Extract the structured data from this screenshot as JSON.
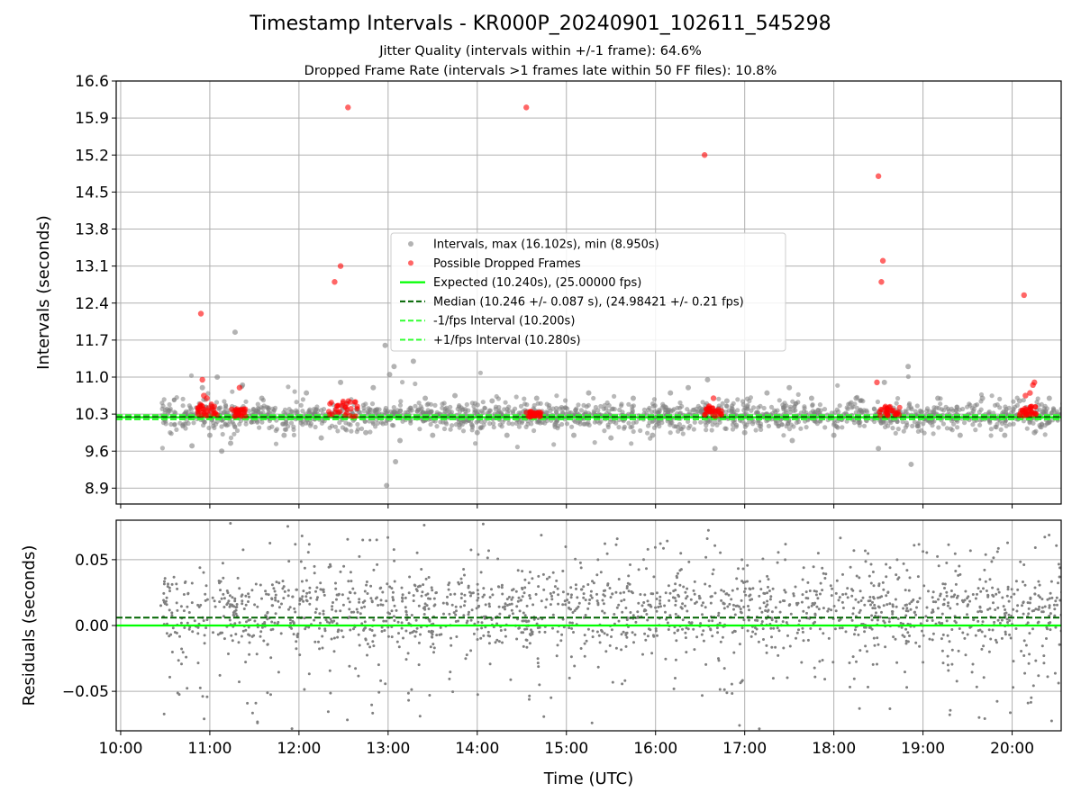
{
  "figure": {
    "title": "Timestamp Intervals - KR000P_20240901_102611_545298",
    "subtitle_1": "Jitter Quality (intervals within +/-1 frame): 64.6%",
    "subtitle_2": "Dropped Frame Rate (intervals >1 frames late within 50 FF files): 10.8%"
  },
  "colors": {
    "intervals": "#808080",
    "dropped": "#ff0000",
    "expected": "#00ff00",
    "median": "#006400",
    "fps_interval": "#32ff32",
    "residuals": "#808080",
    "grid": "#b0b0b0"
  },
  "chart_data": [
    {
      "type": "scatter",
      "ylabel": "Intervals (seconds)",
      "ylim": [
        8.6,
        16.6
      ],
      "xlim": [
        "09:57",
        "20:33"
      ],
      "y_ticks": [
        "8.9",
        "9.6",
        "10.3",
        "11.0",
        "11.7",
        "12.4",
        "13.1",
        "13.8",
        "14.5",
        "15.2",
        "15.9",
        "16.6"
      ],
      "y_tick_values": [
        8.9,
        9.6,
        10.3,
        11.0,
        11.7,
        12.4,
        13.1,
        13.8,
        14.5,
        15.2,
        15.9,
        16.6
      ],
      "grid": true,
      "legend_position": "center",
      "legend": [
        {
          "label": "Intervals, max (16.102s), min (8.950s)",
          "style": "dot-gray"
        },
        {
          "label": "Possible Dropped Frames",
          "style": "dot-red"
        },
        {
          "label": "Expected (10.240s), (25.00000 fps)",
          "style": "line-solid-green"
        },
        {
          "label": "Median (10.246 +/- 0.087 s), (24.98421 +/- 0.21 fps)",
          "style": "line-dashed-darkgreen"
        },
        {
          "label": "-1/fps Interval (10.200s)",
          "style": "line-dashed-green"
        },
        {
          "label": "+1/fps Interval (10.280s)",
          "style": "line-dashed-green"
        }
      ],
      "reference_lines": {
        "expected": 10.24,
        "median": 10.246,
        "minus_fps": 10.2,
        "plus_fps": 10.28
      },
      "series": [
        {
          "name": "Intervals, max (16.102s), min (8.950s)",
          "note": "Dense band of roughly 2000 intervals between 10.45 and 20.6 h, mostly 10.0-10.6 s",
          "points": [
            [
              "10:48",
              9.7
            ],
            [
              "10:55",
              10.8
            ],
            [
              "11:00",
              9.9
            ],
            [
              "11:05",
              11.0
            ],
            [
              "11:08",
              9.6
            ],
            [
              "11:14",
              9.75
            ],
            [
              "11:17",
              11.85
            ],
            [
              "11:22",
              10.85
            ],
            [
              "11:35",
              10.6
            ],
            [
              "11:50",
              9.9
            ],
            [
              "12:05",
              10.7
            ],
            [
              "12:15",
              9.85
            ],
            [
              "12:28",
              10.9
            ],
            [
              "12:45",
              9.95
            ],
            [
              "12:50",
              10.8
            ],
            [
              "12:58",
              11.6
            ],
            [
              "12:59",
              8.95
            ],
            [
              "13:01",
              11.05
            ],
            [
              "13:04",
              11.2
            ],
            [
              "13:05",
              9.4
            ],
            [
              "13:08",
              9.8
            ],
            [
              "13:17",
              11.3
            ],
            [
              "13:25",
              10.6
            ],
            [
              "13:30",
              9.9
            ],
            [
              "13:45",
              10.65
            ],
            [
              "14:00",
              9.95
            ],
            [
              "14:10",
              10.55
            ],
            [
              "14:20",
              9.9
            ],
            [
              "14:40",
              10.6
            ],
            [
              "15:05",
              9.9
            ],
            [
              "15:15",
              10.7
            ],
            [
              "15:30",
              9.85
            ],
            [
              "15:45",
              10.6
            ],
            [
              "15:58",
              9.9
            ],
            [
              "16:10",
              10.7
            ],
            [
              "16:22",
              10.8
            ],
            [
              "16:35",
              10.95
            ],
            [
              "16:40",
              9.65
            ],
            [
              "16:48",
              10.55
            ],
            [
              "17:00",
              9.95
            ],
            [
              "17:15",
              10.7
            ],
            [
              "17:30",
              10.8
            ],
            [
              "17:32",
              9.8
            ],
            [
              "17:45",
              10.6
            ],
            [
              "18:00",
              9.9
            ],
            [
              "18:15",
              10.6
            ],
            [
              "18:30",
              9.65
            ],
            [
              "18:34",
              10.9
            ],
            [
              "18:50",
              11.2
            ],
            [
              "18:52",
              9.35
            ],
            [
              "19:10",
              10.6
            ],
            [
              "19:25",
              9.9
            ],
            [
              "19:40",
              10.6
            ],
            [
              "19:55",
              9.9
            ],
            [
              "20:05",
              10.55
            ],
            [
              "20:15",
              9.95
            ],
            [
              "20:25",
              10.6
            ]
          ]
        },
        {
          "name": "Possible Dropped Frames",
          "points": [
            [
              "10:54",
              12.2
            ],
            [
              "10:55",
              10.95
            ],
            [
              "10:56",
              10.65
            ],
            [
              "10:58",
              10.6
            ],
            [
              "11:20",
              10.8
            ],
            [
              "11:18",
              10.35
            ],
            [
              "12:24",
              12.8
            ],
            [
              "12:28",
              13.1
            ],
            [
              "12:33",
              16.1
            ],
            [
              "12:35",
              10.4
            ],
            [
              "14:33",
              16.1
            ],
            [
              "14:38",
              10.3
            ],
            [
              "16:33",
              15.2
            ],
            [
              "16:36",
              10.45
            ],
            [
              "16:39",
              10.6
            ],
            [
              "18:30",
              14.8
            ],
            [
              "18:32",
              12.8
            ],
            [
              "18:33",
              13.2
            ],
            [
              "18:29",
              10.9
            ],
            [
              "18:36",
              10.4
            ],
            [
              "20:08",
              12.55
            ],
            [
              "20:09",
              10.65
            ],
            [
              "20:12",
              10.7
            ],
            [
              "20:14",
              10.85
            ],
            [
              "20:15",
              10.9
            ]
          ],
          "clusters": [
            {
              "from": "10:50",
              "to": "11:05",
              "y_from": 10.25,
              "y_to": 10.5
            },
            {
              "from": "11:14",
              "to": "11:24",
              "y_from": 10.25,
              "y_to": 10.4
            },
            {
              "from": "12:20",
              "to": "12:40",
              "y_from": 10.25,
              "y_to": 10.55
            },
            {
              "from": "14:33",
              "to": "14:43",
              "y_from": 10.25,
              "y_to": 10.35
            },
            {
              "from": "16:33",
              "to": "16:45",
              "y_from": 10.25,
              "y_to": 10.45
            },
            {
              "from": "18:30",
              "to": "18:45",
              "y_from": 10.25,
              "y_to": 10.45
            },
            {
              "from": "20:05",
              "to": "20:17",
              "y_from": 10.25,
              "y_to": 10.45
            }
          ]
        }
      ]
    },
    {
      "type": "scatter",
      "xlabel": "Time (UTC)",
      "ylabel": "Residuals (seconds)",
      "ylim": [
        -0.08,
        0.08
      ],
      "y_ticks": [
        "−0.05",
        "0.00",
        "0.05"
      ],
      "y_tick_values": [
        -0.05,
        0.0,
        0.05
      ],
      "x_ticks": [
        "10:00",
        "11:00",
        "12:00",
        "13:00",
        "14:00",
        "15:00",
        "16:00",
        "17:00",
        "18:00",
        "19:00",
        "20:00"
      ],
      "grid": true,
      "reference_lines": {
        "expected": 0.0,
        "median": 0.006
      },
      "series": [
        {
          "name": "Residuals",
          "note": "Roughly 2000 residual points from 10:27 to 20:35, concentrated between -0.03 and +0.04 s, clipped at +/-0.08"
        }
      ]
    }
  ]
}
